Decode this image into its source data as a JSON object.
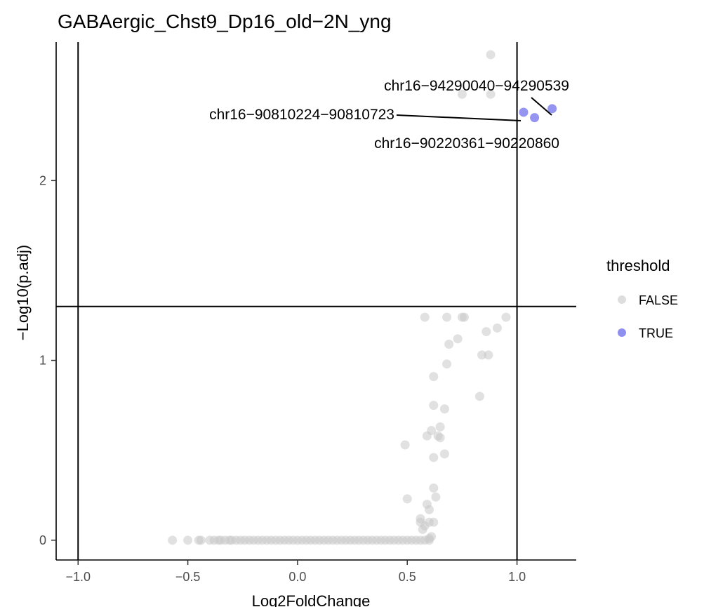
{
  "chart_data": {
    "type": "scatter",
    "title": "GABAergic_Chst9_Dp16_old−2N_yng",
    "xlabel": "Log2FoldChange",
    "ylabel": "−Log10(p.adj)",
    "xlim": [
      -1.1,
      1.27
    ],
    "ylim": [
      -0.11,
      2.77
    ],
    "x_ticks": [
      -1.0,
      -0.5,
      0.0,
      0.5,
      1.0
    ],
    "x_tick_labels": [
      "−1.0",
      "−0.5",
      "0.0",
      "0.5",
      "1.0"
    ],
    "y_ticks": [
      0,
      1,
      2
    ],
    "y_tick_labels": [
      "0",
      "1",
      "2"
    ],
    "reference_lines": {
      "vertical": [
        -1.0,
        1.0
      ],
      "horizontal": [
        1.3
      ]
    },
    "legend": {
      "title": "threshold",
      "placement": "right",
      "entries": [
        {
          "label": "FALSE",
          "color": "#c8c8c8"
        },
        {
          "label": "TRUE",
          "color": "#8f8ff0"
        }
      ]
    },
    "series": [
      {
        "name": "FALSE",
        "color": "#c8c8c8",
        "points": [
          [
            -0.57,
            0
          ],
          [
            -0.5,
            0
          ],
          [
            -0.45,
            0
          ],
          [
            -0.44,
            0
          ],
          [
            -0.4,
            0
          ],
          [
            -0.38,
            0
          ],
          [
            -0.36,
            0
          ],
          [
            -0.35,
            0
          ],
          [
            -0.33,
            0
          ],
          [
            -0.31,
            0
          ],
          [
            -0.3,
            0
          ],
          [
            -0.28,
            0
          ],
          [
            -0.26,
            0
          ],
          [
            -0.24,
            0
          ],
          [
            -0.22,
            0
          ],
          [
            -0.2,
            0
          ],
          [
            -0.18,
            0
          ],
          [
            -0.16,
            0
          ],
          [
            -0.14,
            0
          ],
          [
            -0.12,
            0
          ],
          [
            -0.1,
            0
          ],
          [
            -0.08,
            0
          ],
          [
            -0.06,
            0
          ],
          [
            -0.04,
            0
          ],
          [
            -0.02,
            0
          ],
          [
            0.0,
            0
          ],
          [
            0.02,
            0
          ],
          [
            0.04,
            0
          ],
          [
            0.06,
            0
          ],
          [
            0.08,
            0
          ],
          [
            0.1,
            0
          ],
          [
            0.12,
            0
          ],
          [
            0.14,
            0
          ],
          [
            0.16,
            0
          ],
          [
            0.18,
            0
          ],
          [
            0.2,
            0
          ],
          [
            0.22,
            0
          ],
          [
            0.24,
            0
          ],
          [
            0.26,
            0
          ],
          [
            0.28,
            0
          ],
          [
            0.3,
            0
          ],
          [
            0.32,
            0
          ],
          [
            0.34,
            0
          ],
          [
            0.36,
            0
          ],
          [
            0.38,
            0
          ],
          [
            0.4,
            0
          ],
          [
            0.42,
            0
          ],
          [
            0.44,
            0
          ],
          [
            0.46,
            0
          ],
          [
            0.48,
            0
          ],
          [
            0.5,
            0
          ],
          [
            0.52,
            0
          ],
          [
            0.54,
            0
          ],
          [
            0.56,
            0
          ],
          [
            0.58,
            0
          ],
          [
            0.6,
            0
          ],
          [
            0.6,
            0.01
          ],
          [
            0.61,
            0.02
          ],
          [
            0.57,
            0.06
          ],
          [
            0.58,
            0.08
          ],
          [
            0.6,
            0.1
          ],
          [
            0.62,
            0.1
          ],
          [
            0.56,
            0.1
          ],
          [
            0.56,
            0.12
          ],
          [
            0.5,
            0.23
          ],
          [
            0.59,
            0.2
          ],
          [
            0.6,
            0.17
          ],
          [
            0.63,
            0.24
          ],
          [
            0.62,
            0.29
          ],
          [
            0.49,
            0.53
          ],
          [
            0.59,
            0.58
          ],
          [
            0.62,
            0.46
          ],
          [
            0.61,
            0.61
          ],
          [
            0.64,
            0.58
          ],
          [
            0.65,
            0.57
          ],
          [
            0.65,
            0.63
          ],
          [
            0.67,
            0.48
          ],
          [
            0.62,
            0.75
          ],
          [
            0.67,
            0.73
          ],
          [
            0.62,
            0.91
          ],
          [
            0.68,
            0.98
          ],
          [
            0.69,
            1.09
          ],
          [
            0.73,
            1.12
          ],
          [
            0.83,
            0.8
          ],
          [
            0.84,
            1.03
          ],
          [
            0.87,
            1.03
          ],
          [
            0.86,
            1.16
          ],
          [
            0.91,
            1.18
          ],
          [
            0.58,
            1.24
          ],
          [
            0.68,
            1.24
          ],
          [
            0.75,
            1.24
          ],
          [
            0.76,
            1.24
          ],
          [
            0.95,
            1.24
          ],
          [
            0.75,
            2.48
          ],
          [
            0.88,
            2.48
          ],
          [
            0.88,
            2.7
          ]
        ]
      },
      {
        "name": "TRUE",
        "color": "#8f8ff0",
        "points": [
          [
            1.03,
            2.38
          ],
          [
            1.08,
            2.35
          ],
          [
            1.16,
            2.4
          ]
        ]
      }
    ],
    "annotations": [
      {
        "label": "chr16−94290040−94290539",
        "x": 1.16,
        "y": 2.4
      },
      {
        "label": "chr16−90810224−90810723",
        "x": 1.03,
        "y": 2.38
      },
      {
        "label": "chr16−90220361−90220860",
        "x": 1.08,
        "y": 2.35
      }
    ]
  }
}
